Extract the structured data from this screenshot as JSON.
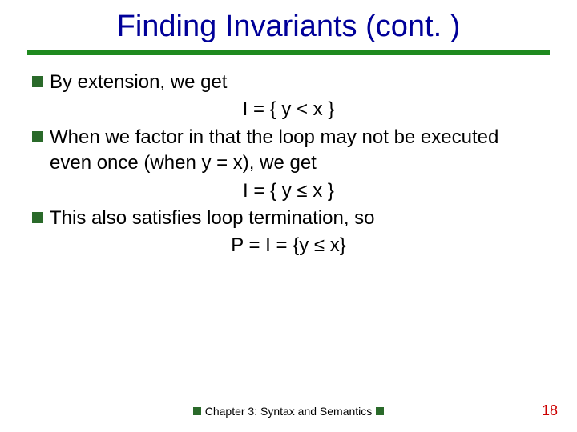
{
  "title": "Finding Invariants (cont. )",
  "colors": {
    "title_color": "#000099",
    "rule_color": "#1f8a1f",
    "bullet_square": "#2a6a2a",
    "text_color": "#000000",
    "page_number_color": "#cc0000",
    "background": "#ffffff"
  },
  "typography": {
    "title_fontsize": 38,
    "body_fontsize": 24,
    "footer_fontsize": 14,
    "pagenum_fontsize": 18,
    "font_family": "Verdana"
  },
  "bullets": [
    {
      "text": "By extension, we get",
      "eq": "I = { y < x }"
    },
    {
      "text": "When we factor in that the loop may not be executed even once (when y = x), we get",
      "eq": "I = { y ≤ x }"
    },
    {
      "text": "This also satisfies loop termination, so",
      "eq": "P = I = {y ≤ x}"
    }
  ],
  "footer": {
    "chapter": "Chapter 3: Syntax and Semantics"
  },
  "page_number": "18"
}
